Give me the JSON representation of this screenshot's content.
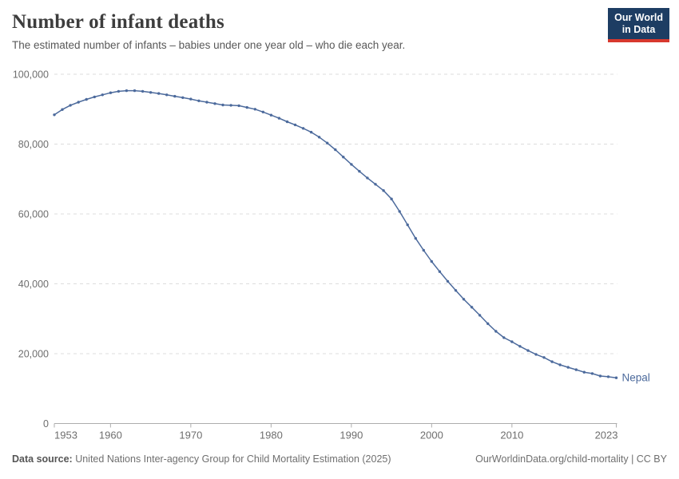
{
  "header": {
    "title": "Number of infant deaths",
    "subtitle": "The estimated number of infants – babies under one year old – who die each year."
  },
  "logo": {
    "line1": "Our World",
    "line2": "in Data"
  },
  "chart_data": {
    "type": "line",
    "title": "Number of infant deaths",
    "xlabel": "",
    "ylabel": "",
    "xlim": [
      1953,
      2023
    ],
    "ylim": [
      0,
      100000
    ],
    "grid": "horizontal-dashed",
    "legend_position": "end-of-line-label",
    "x_ticks": [
      1953,
      1960,
      1970,
      1980,
      1990,
      2000,
      2010,
      2023
    ],
    "y_ticks": [
      0,
      20000,
      40000,
      60000,
      80000,
      100000
    ],
    "series": [
      {
        "name": "Nepal",
        "color": "#4C6A9C",
        "x": [
          1953,
          1954,
          1955,
          1956,
          1957,
          1958,
          1959,
          1960,
          1961,
          1962,
          1963,
          1964,
          1965,
          1966,
          1967,
          1968,
          1969,
          1970,
          1971,
          1972,
          1973,
          1974,
          1975,
          1976,
          1977,
          1978,
          1979,
          1980,
          1981,
          1982,
          1983,
          1984,
          1985,
          1986,
          1987,
          1988,
          1989,
          1990,
          1991,
          1992,
          1993,
          1994,
          1995,
          1996,
          1997,
          1998,
          1999,
          2000,
          2001,
          2002,
          2003,
          2004,
          2005,
          2006,
          2007,
          2008,
          2009,
          2010,
          2011,
          2012,
          2013,
          2014,
          2015,
          2016,
          2017,
          2018,
          2019,
          2020,
          2021,
          2022,
          2023
        ],
        "values": [
          88400,
          89900,
          91100,
          92000,
          92800,
          93500,
          94100,
          94700,
          95100,
          95300,
          95300,
          95100,
          94800,
          94500,
          94100,
          93700,
          93300,
          92900,
          92400,
          92000,
          91600,
          91200,
          91100,
          91000,
          90500,
          90000,
          89200,
          88300,
          87400,
          86400,
          85500,
          84500,
          83400,
          82000,
          80300,
          78400,
          76300,
          74200,
          72200,
          70300,
          68500,
          66700,
          64300,
          60700,
          56900,
          53000,
          49600,
          46400,
          43500,
          40700,
          38100,
          35600,
          33300,
          31000,
          28600,
          26400,
          24600,
          23400,
          22100,
          20900,
          19800,
          18900,
          17700,
          16800,
          16100,
          15400,
          14700,
          14300,
          13600,
          13400,
          13100
        ]
      }
    ]
  },
  "footer": {
    "datasource_label": "Data source:",
    "datasource_text": " United Nations Inter-agency Group for Child Mortality Estimation (2025)",
    "credit": "OurWorldinData.org/child-mortality | CC BY"
  },
  "colors": {
    "line": "#4C6A9C",
    "gridline": "#dcdcdc",
    "axis": "#adadad",
    "tick_text": "#6e6e6e",
    "title": "#3d3d3d",
    "logo_bg": "#1d3d63",
    "logo_red": "#d7382e"
  }
}
